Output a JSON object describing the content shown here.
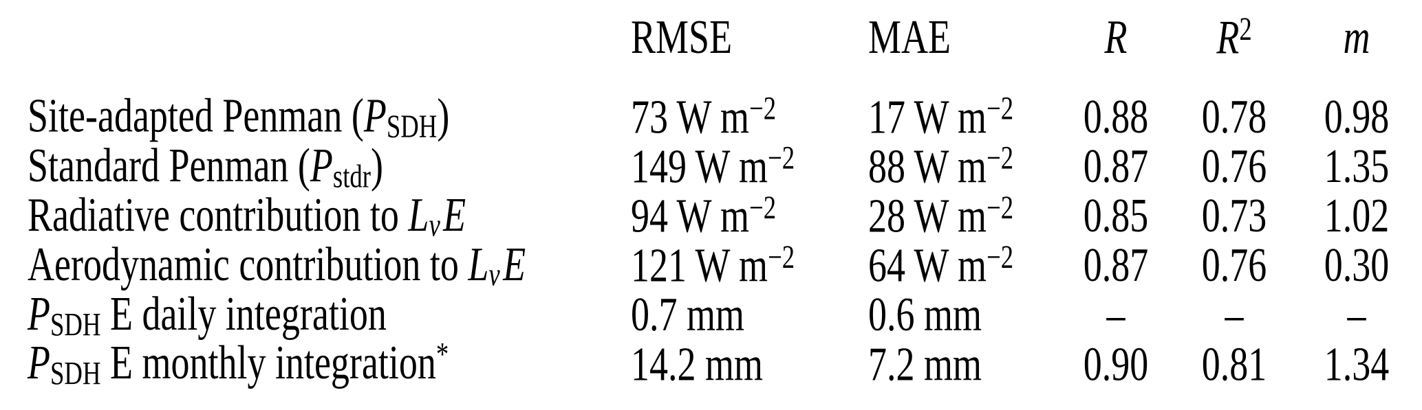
{
  "colors": {
    "text": "#000000",
    "background": "#ffffff",
    "rule": "#000000"
  },
  "table": {
    "header": [
      {
        "key": "label",
        "align": "left",
        "parts": []
      },
      {
        "key": "rmse",
        "align": "left",
        "parts": [
          {
            "t": "t",
            "v": "RMSE"
          }
        ]
      },
      {
        "key": "mae",
        "align": "left",
        "parts": [
          {
            "t": "t",
            "v": "MAE"
          }
        ]
      },
      {
        "key": "r",
        "align": "center",
        "parts": [
          {
            "t": "i",
            "v": "R"
          }
        ]
      },
      {
        "key": "r2",
        "align": "center",
        "parts": [
          {
            "t": "i",
            "v": "R"
          },
          {
            "t": "sup",
            "v": "2"
          }
        ]
      },
      {
        "key": "m",
        "align": "center",
        "parts": [
          {
            "t": "i",
            "v": "m"
          }
        ]
      }
    ],
    "rows": [
      {
        "label": [
          {
            "t": "t",
            "v": "Site-adapted Penman ("
          },
          {
            "t": "i",
            "v": "P"
          },
          {
            "t": "sub",
            "v": "SDH"
          },
          {
            "t": "t",
            "v": ")"
          }
        ],
        "rmse": [
          {
            "t": "t",
            "v": "73 W m"
          },
          {
            "t": "sup",
            "v": "−2"
          }
        ],
        "mae": [
          {
            "t": "t",
            "v": "17 W m"
          },
          {
            "t": "sup",
            "v": "−2"
          }
        ],
        "r": [
          {
            "t": "t",
            "v": "0.88"
          }
        ],
        "r2": [
          {
            "t": "t",
            "v": "0.78"
          }
        ],
        "m": [
          {
            "t": "t",
            "v": "0.98"
          }
        ]
      },
      {
        "label": [
          {
            "t": "t",
            "v": "Standard Penman ("
          },
          {
            "t": "i",
            "v": "P"
          },
          {
            "t": "sub",
            "v": "stdr"
          },
          {
            "t": "t",
            "v": ")"
          }
        ],
        "rmse": [
          {
            "t": "t",
            "v": "149 W m"
          },
          {
            "t": "sup",
            "v": "−2"
          }
        ],
        "mae": [
          {
            "t": "t",
            "v": "88 W m"
          },
          {
            "t": "sup",
            "v": "−2"
          }
        ],
        "r": [
          {
            "t": "t",
            "v": "0.87"
          }
        ],
        "r2": [
          {
            "t": "t",
            "v": "0.76"
          }
        ],
        "m": [
          {
            "t": "t",
            "v": "1.35"
          }
        ]
      },
      {
        "label": [
          {
            "t": "t",
            "v": "Radiative contribution to "
          },
          {
            "t": "i",
            "v": "L"
          },
          {
            "t": "isub",
            "v": "v"
          },
          {
            "t": "i",
            "v": "E"
          }
        ],
        "rmse": [
          {
            "t": "t",
            "v": "94 W m"
          },
          {
            "t": "sup",
            "v": "−2"
          }
        ],
        "mae": [
          {
            "t": "t",
            "v": "28 W m"
          },
          {
            "t": "sup",
            "v": "−2"
          }
        ],
        "r": [
          {
            "t": "t",
            "v": "0.85"
          }
        ],
        "r2": [
          {
            "t": "t",
            "v": "0.73"
          }
        ],
        "m": [
          {
            "t": "t",
            "v": "1.02"
          }
        ]
      },
      {
        "label": [
          {
            "t": "t",
            "v": "Aerodynamic contribution to "
          },
          {
            "t": "i",
            "v": "L"
          },
          {
            "t": "isub",
            "v": "v"
          },
          {
            "t": "i",
            "v": "E"
          }
        ],
        "rmse": [
          {
            "t": "t",
            "v": "121 W m"
          },
          {
            "t": "sup",
            "v": "−2"
          }
        ],
        "mae": [
          {
            "t": "t",
            "v": "64 W m"
          },
          {
            "t": "sup",
            "v": "−2"
          }
        ],
        "r": [
          {
            "t": "t",
            "v": "0.87"
          }
        ],
        "r2": [
          {
            "t": "t",
            "v": "0.76"
          }
        ],
        "m": [
          {
            "t": "t",
            "v": "0.30"
          }
        ]
      },
      {
        "label": [
          {
            "t": "i",
            "v": "P"
          },
          {
            "t": "sub",
            "v": "SDH"
          },
          {
            "t": "t",
            "v": " E daily integration"
          }
        ],
        "rmse": [
          {
            "t": "t",
            "v": "0.7 mm"
          }
        ],
        "mae": [
          {
            "t": "t",
            "v": "0.6 mm"
          }
        ],
        "r": [
          {
            "t": "t",
            "v": "–"
          }
        ],
        "r2": [
          {
            "t": "t",
            "v": "–"
          }
        ],
        "m": [
          {
            "t": "t",
            "v": "–"
          }
        ]
      },
      {
        "label": [
          {
            "t": "i",
            "v": "P"
          },
          {
            "t": "sub",
            "v": "SDH"
          },
          {
            "t": "t",
            "v": " E monthly integration"
          },
          {
            "t": "sup",
            "v": "*"
          }
        ],
        "rmse": [
          {
            "t": "t",
            "v": "14.2 mm"
          }
        ],
        "mae": [
          {
            "t": "t",
            "v": "7.2 mm"
          }
        ],
        "r": [
          {
            "t": "t",
            "v": "0.90"
          }
        ],
        "r2": [
          {
            "t": "t",
            "v": "0.81"
          }
        ],
        "m": [
          {
            "t": "t",
            "v": "1.34"
          }
        ]
      }
    ]
  }
}
